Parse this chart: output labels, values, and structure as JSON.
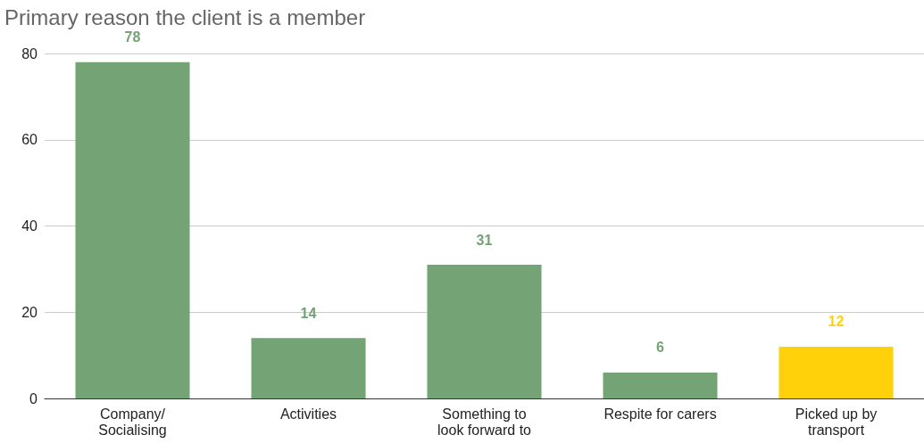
{
  "chart_data": {
    "type": "bar",
    "title": "Primary reason the client is a member",
    "categories": [
      "Company/\nSocialising",
      "Activities",
      "Something to\nlook forward to",
      "Respite for carers",
      "Picked up by\ntransport"
    ],
    "values": [
      78,
      14,
      31,
      6,
      12
    ],
    "colors": [
      "#74a476",
      "#74a476",
      "#74a476",
      "#74a476",
      "#ffd10a"
    ],
    "ylim": [
      0,
      80
    ],
    "yticks": [
      0,
      20,
      40,
      60,
      80
    ],
    "grid": "y",
    "data_labels": true
  }
}
